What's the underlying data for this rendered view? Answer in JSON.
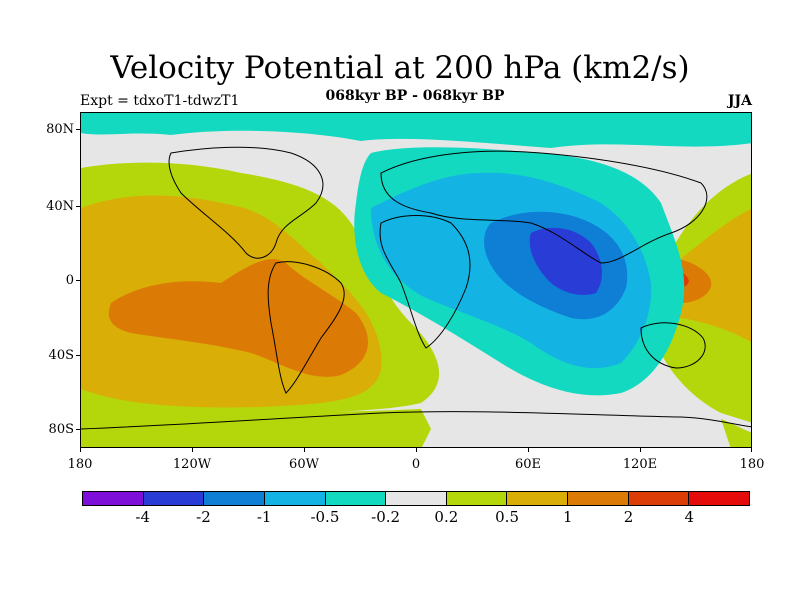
{
  "title": "Velocity Potential at 200 hPa (km2/s)",
  "subtitle_left": "Expt = tdxoT1-tdwzT1",
  "subtitle_center": "068kyr BP - 068kyr BP",
  "subtitle_right": "JJA",
  "lat_labels": [
    "80N",
    "40N",
    "0",
    "40S",
    "80S"
  ],
  "lon_labels": [
    "180",
    "120W",
    "60W",
    "0",
    "60E",
    "120E",
    "180"
  ],
  "colorbar": {
    "colors": [
      "#7e0fd8",
      "#2a3cd6",
      "#0f7fd6",
      "#13b4e4",
      "#13d9c0",
      "#e6e6e6",
      "#b4d70c",
      "#d9ae07",
      "#dc7a06",
      "#dc3c06",
      "#e60b0b"
    ],
    "labels": [
      "-4",
      "-2",
      "-1",
      "-0.5",
      "-0.2",
      "0.2",
      "0.5",
      "1",
      "2",
      "4"
    ]
  },
  "chart_data": {
    "type": "heatmap",
    "variable": "Velocity Potential at 200 hPa (km2/s)",
    "season": "JJA",
    "experiment": "tdxoT1-tdwzT1",
    "period": "068kyr BP - 068kyr BP",
    "lat_range": [
      -90,
      90
    ],
    "lon_range": [
      -180,
      180
    ],
    "levels": [
      -4,
      -2,
      -1,
      -0.5,
      -0.2,
      0.2,
      0.5,
      1,
      2,
      4
    ],
    "features": [
      {
        "region": "Indian Ocean / South Asia",
        "sign": "negative",
        "min_bin": "-4 to -2"
      },
      {
        "region": "Africa / Atlantic / Eurasia",
        "sign": "negative",
        "range": "-1 to -0.2"
      },
      {
        "region": "Eastern Pacific / South America",
        "sign": "positive",
        "max_bin": "1 to 2"
      },
      {
        "region": "Western Pacific near Indonesia",
        "sign": "positive",
        "max_bin": "2 to 4"
      }
    ]
  }
}
